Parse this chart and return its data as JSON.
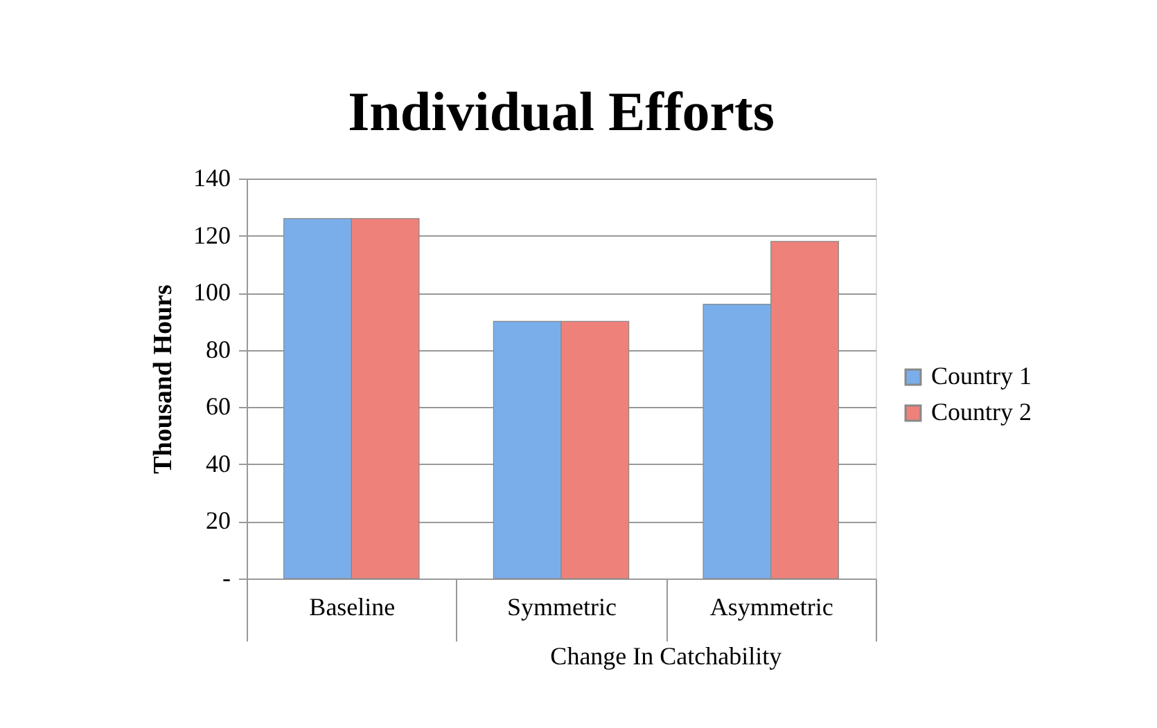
{
  "chart_data": {
    "type": "bar",
    "title": "Individual Efforts",
    "ylabel": "Thousand Hours",
    "xlabel": "Change In Catchability",
    "categories": [
      "Baseline",
      "Symmetric",
      "Asymmetric"
    ],
    "series": [
      {
        "name": "Country 1",
        "color": "#7aaeea",
        "values": [
          126,
          90,
          96
        ]
      },
      {
        "name": "Country 2",
        "color": "#ee827b",
        "values": [
          126,
          90,
          118
        ]
      }
    ],
    "ylim": [
      0,
      140
    ],
    "yticks": [
      {
        "value": 0,
        "label": "-"
      },
      20,
      40,
      60,
      80,
      100,
      120,
      140
    ],
    "grid": "y",
    "legend": "right"
  }
}
